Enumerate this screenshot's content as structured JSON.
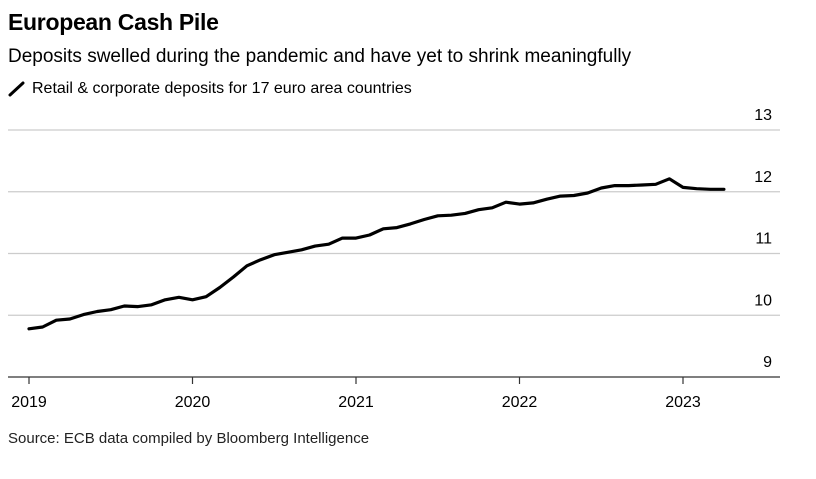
{
  "header": {
    "title": "European Cash Pile",
    "subtitle": "Deposits swelled during the pandemic and have yet to shrink meaningfully"
  },
  "footer": {
    "source": "Source: ECB data compiled by Bloomberg Intelligence"
  },
  "colors": {
    "line": "#000000",
    "grid": "#cccccc",
    "axis": "#333333"
  },
  "chart_data": {
    "type": "line",
    "title": "European Cash Pile",
    "subtitle": "Deposits swelled during the pandemic and have yet to shrink meaningfully",
    "xlabel": "",
    "ylabel": "",
    "ylim": [
      9,
      13
    ],
    "y_ticks": [
      13,
      12,
      11,
      10,
      9
    ],
    "y_axis_position": "right",
    "grid": true,
    "legend_position": "top-left",
    "x_ticks": [
      {
        "label": "2019",
        "value": 2019.0
      },
      {
        "label": "2020",
        "value": 2020.0
      },
      {
        "label": "2021",
        "value": 2021.0
      },
      {
        "label": "2022",
        "value": 2022.0
      },
      {
        "label": "2023",
        "value": 2023.0
      }
    ],
    "xlim": [
      2019.0,
      2023.6
    ],
    "series": [
      {
        "name": "Retail & corporate deposits for 17 euro area countries",
        "x": [
          2019.0,
          2019.083,
          2019.167,
          2019.25,
          2019.333,
          2019.417,
          2019.5,
          2019.583,
          2019.667,
          2019.75,
          2019.833,
          2019.917,
          2020.0,
          2020.083,
          2020.167,
          2020.25,
          2020.333,
          2020.417,
          2020.5,
          2020.583,
          2020.667,
          2020.75,
          2020.833,
          2020.917,
          2021.0,
          2021.083,
          2021.167,
          2021.25,
          2021.333,
          2021.417,
          2021.5,
          2021.583,
          2021.667,
          2021.75,
          2021.833,
          2021.917,
          2022.0,
          2022.083,
          2022.167,
          2022.25,
          2022.333,
          2022.417,
          2022.5,
          2022.583,
          2022.667,
          2022.75,
          2022.833,
          2022.917,
          2023.0,
          2023.083,
          2023.167,
          2023.25
        ],
        "values": [
          9.78,
          9.81,
          9.92,
          9.94,
          10.01,
          10.06,
          10.09,
          10.15,
          10.14,
          10.17,
          10.25,
          10.29,
          10.25,
          10.3,
          10.45,
          10.62,
          10.8,
          10.9,
          10.98,
          11.02,
          11.06,
          11.12,
          11.15,
          11.25,
          11.25,
          11.3,
          11.4,
          11.42,
          11.48,
          11.55,
          11.61,
          11.62,
          11.65,
          11.71,
          11.74,
          11.83,
          11.8,
          11.82,
          11.88,
          11.93,
          11.94,
          11.98,
          12.06,
          12.1,
          12.1,
          12.11,
          12.12,
          12.21,
          12.07,
          12.05,
          12.04,
          12.04
        ]
      }
    ]
  }
}
